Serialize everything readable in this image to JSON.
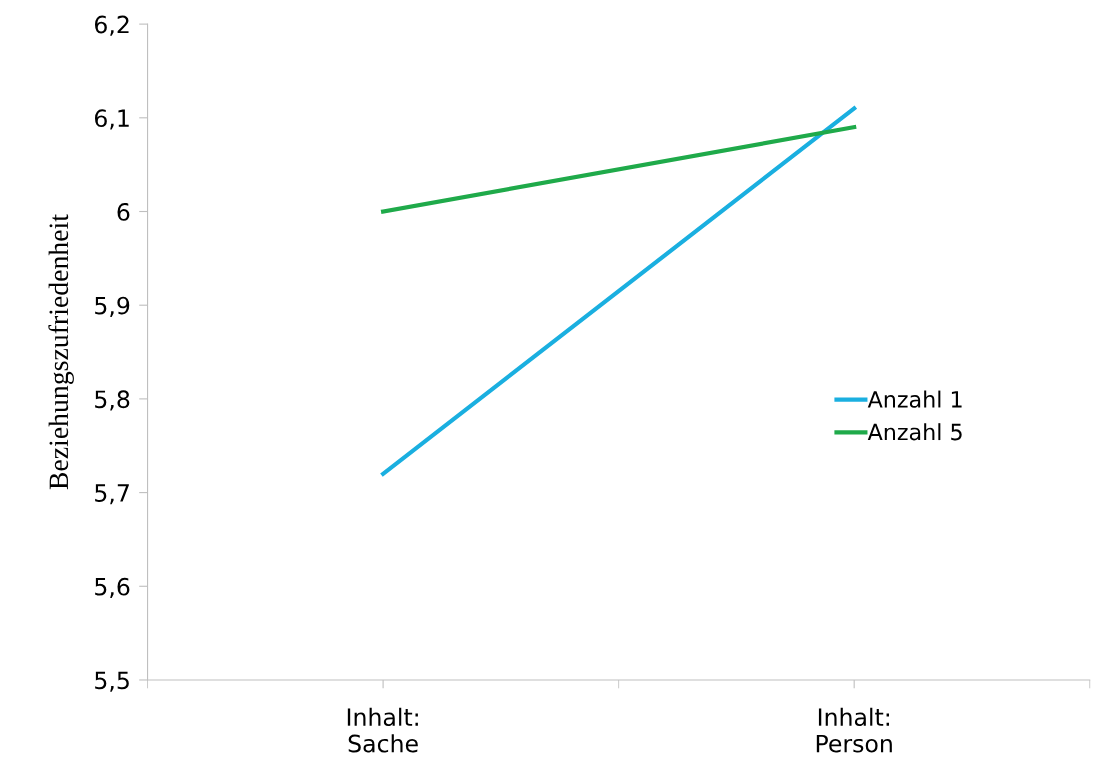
{
  "chart_data": {
    "type": "line",
    "ylabel": "Beziehungszufriedenheit",
    "categories": [
      "Inhalt:\nSache",
      "Inhalt:\nPerson"
    ],
    "series": [
      {
        "name": "Anzahl 1",
        "color": "#1aafe0",
        "values": [
          5.72,
          6.11
        ]
      },
      {
        "name": "Anzahl 5",
        "color": "#1faa4a",
        "values": [
          6.0,
          6.09
        ]
      }
    ],
    "ylim": [
      5.5,
      6.2
    ],
    "yticks": [
      {
        "value": 5.5,
        "label": "5,5"
      },
      {
        "value": 5.6,
        "label": "5,6"
      },
      {
        "value": 5.7,
        "label": "5,7"
      },
      {
        "value": 5.8,
        "label": "5,8"
      },
      {
        "value": 5.9,
        "label": "5,9"
      },
      6,
      {
        "value": 6.1,
        "label": "6,1"
      },
      {
        "value": 6.2,
        "label": "6,2"
      }
    ],
    "grid": false,
    "legend": "right",
    "marker": "none",
    "line_style": "solid"
  }
}
